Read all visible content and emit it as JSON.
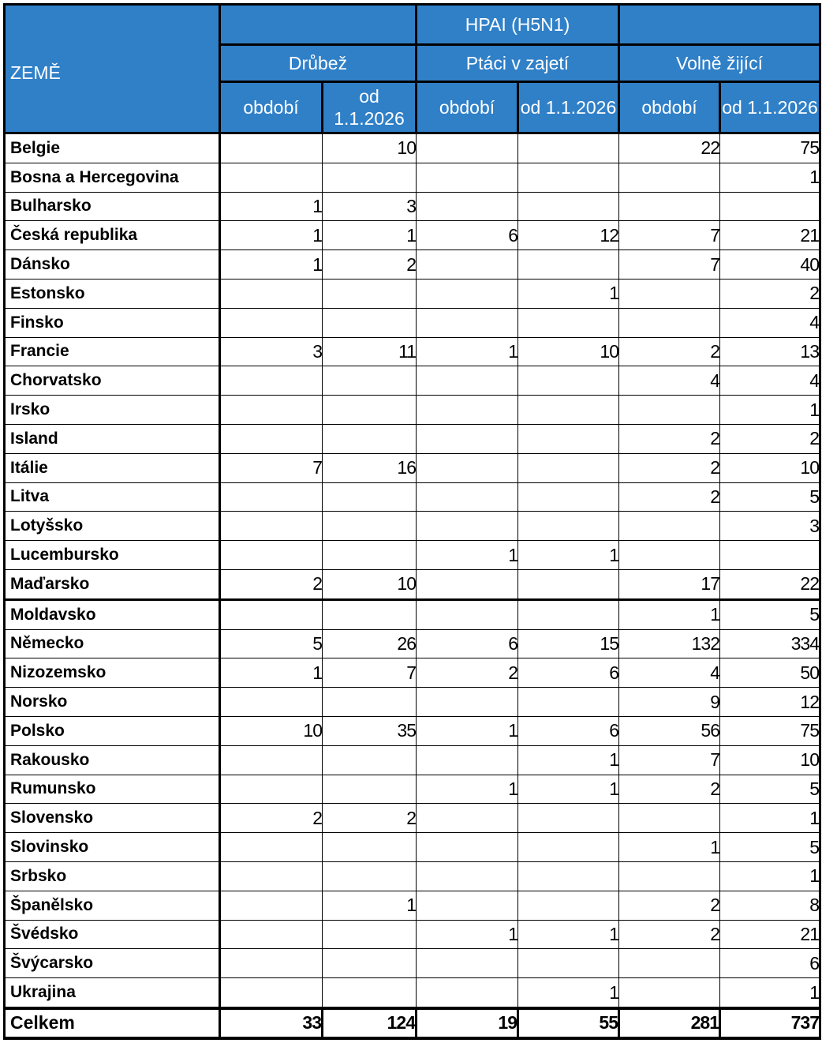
{
  "header": {
    "country_label": "ZEMĚ",
    "group_label": "HPAI (H5N1)",
    "categories": [
      "Drůbež",
      "Ptáci v zajetí",
      "Volně žijící"
    ],
    "sub_labels": [
      "období",
      "od 1.1.2026"
    ]
  },
  "colors": {
    "header_bg": "#3080c8",
    "header_text": "#ffffff"
  },
  "rows": [
    {
      "country": "Belgie",
      "values": [
        "",
        "10",
        "",
        "",
        "22",
        "75"
      ]
    },
    {
      "country": "Bosna a Hercegovina",
      "values": [
        "",
        "",
        "",
        "",
        "",
        "1"
      ]
    },
    {
      "country": "Bulharsko",
      "values": [
        "1",
        "3",
        "",
        "",
        "",
        ""
      ]
    },
    {
      "country": "Česká republika",
      "values": [
        "1",
        "1",
        "6",
        "12",
        "7",
        "21"
      ]
    },
    {
      "country": "Dánsko",
      "values": [
        "1",
        "2",
        "",
        "",
        "7",
        "40"
      ]
    },
    {
      "country": "Estonsko",
      "values": [
        "",
        "",
        "",
        "1",
        "",
        "2"
      ]
    },
    {
      "country": "Finsko",
      "values": [
        "",
        "",
        "",
        "",
        "",
        "4"
      ]
    },
    {
      "country": "Francie",
      "values": [
        "3",
        "11",
        "1",
        "10",
        "2",
        "13"
      ]
    },
    {
      "country": "Chorvatsko",
      "values": [
        "",
        "",
        "",
        "",
        "4",
        "4"
      ]
    },
    {
      "country": "Irsko",
      "values": [
        "",
        "",
        "",
        "",
        "",
        "1"
      ]
    },
    {
      "country": "Island",
      "values": [
        "",
        "",
        "",
        "",
        "2",
        "2"
      ]
    },
    {
      "country": "Itálie",
      "values": [
        "7",
        "16",
        "",
        "",
        "2",
        "10"
      ]
    },
    {
      "country": "Litva",
      "values": [
        "",
        "",
        "",
        "",
        "2",
        "5"
      ]
    },
    {
      "country": "Lotyšsko",
      "values": [
        "",
        "",
        "",
        "",
        "",
        "3"
      ]
    },
    {
      "country": "Lucembursko",
      "values": [
        "",
        "",
        "1",
        "1",
        "",
        ""
      ]
    },
    {
      "country": "Maďarsko",
      "values": [
        "2",
        "10",
        "",
        "",
        "17",
        "22"
      ]
    },
    {
      "country": "Moldavsko",
      "values": [
        "",
        "",
        "",
        "",
        "1",
        "5"
      ]
    },
    {
      "country": "Německo",
      "values": [
        "5",
        "26",
        "6",
        "15",
        "132",
        "334"
      ]
    },
    {
      "country": "Nizozemsko",
      "values": [
        "1",
        "7",
        "2",
        "6",
        "4",
        "50"
      ]
    },
    {
      "country": "Norsko",
      "values": [
        "",
        "",
        "",
        "",
        "9",
        "12"
      ]
    },
    {
      "country": "Polsko",
      "values": [
        "10",
        "35",
        "1",
        "6",
        "56",
        "75"
      ]
    },
    {
      "country": "Rakousko",
      "values": [
        "",
        "",
        "",
        "1",
        "7",
        "10"
      ]
    },
    {
      "country": "Rumunsko",
      "values": [
        "",
        "",
        "1",
        "1",
        "2",
        "5"
      ]
    },
    {
      "country": "Slovensko",
      "values": [
        "2",
        "2",
        "",
        "",
        "",
        "1"
      ]
    },
    {
      "country": "Slovinsko",
      "values": [
        "",
        "",
        "",
        "",
        "1",
        "5"
      ]
    },
    {
      "country": "Srbsko",
      "values": [
        "",
        "",
        "",
        "",
        "",
        "1"
      ]
    },
    {
      "country": "Španělsko",
      "values": [
        "",
        "1",
        "",
        "",
        "2",
        "8"
      ]
    },
    {
      "country": "Švédsko",
      "values": [
        "",
        "",
        "1",
        "1",
        "2",
        "21"
      ]
    },
    {
      "country": "Švýcarsko",
      "values": [
        "",
        "",
        "",
        "",
        "",
        "6"
      ]
    },
    {
      "country": "Ukrajina",
      "values": [
        "",
        "",
        "",
        "1",
        "",
        "1"
      ]
    }
  ],
  "total": {
    "label": "Celkem",
    "values": [
      "33",
      "124",
      "19",
      "55",
      "281",
      "737"
    ]
  }
}
